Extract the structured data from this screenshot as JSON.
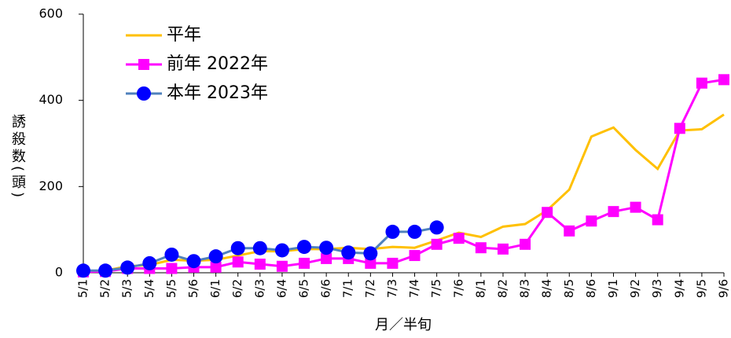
{
  "chart_data": {
    "type": "line",
    "y_label": "誘殺数(頭)",
    "x_label": "月／半旬",
    "categories": [
      "5/1",
      "5/2",
      "5/3",
      "5/4",
      "5/5",
      "5/6",
      "6/1",
      "6/2",
      "6/3",
      "6/4",
      "6/5",
      "6/6",
      "7/1",
      "7/2",
      "7/3",
      "7/4",
      "7/5",
      "7/6",
      "8/1",
      "8/2",
      "8/3",
      "8/4",
      "8/5",
      "8/6",
      "9/1",
      "9/2",
      "9/3",
      "9/4",
      "9/5",
      "9/6"
    ],
    "series": [
      {
        "name": "平年",
        "color": "#ffc000",
        "marker": "none",
        "values": [
          3,
          5,
          15,
          18,
          30,
          28,
          30,
          40,
          50,
          50,
          55,
          55,
          58,
          55,
          60,
          58,
          75,
          93,
          83,
          107,
          113,
          145,
          193,
          316,
          337,
          285,
          241,
          330,
          333,
          367
        ]
      },
      {
        "name": "前年 2022年",
        "color": "#ff00ff",
        "marker": "square",
        "values": [
          2,
          3,
          10,
          10,
          10,
          13,
          13,
          25,
          20,
          15,
          22,
          33,
          33,
          22,
          22,
          40,
          66,
          80,
          58,
          55,
          66,
          140,
          97,
          120,
          142,
          152,
          123,
          335,
          440,
          448
        ]
      },
      {
        "name": "本年 2023年",
        "color": "#4f81bd",
        "marker_color": "#0000ff",
        "marker": "circle",
        "values": [
          5,
          5,
          12,
          22,
          42,
          27,
          38,
          57,
          57,
          52,
          60,
          58,
          47,
          45,
          95,
          95,
          105,
          null,
          null,
          null,
          null,
          null,
          null,
          null,
          null,
          null,
          null,
          null,
          null,
          null
        ]
      }
    ],
    "ylim": [
      0,
      600
    ],
    "yticks": [
      0,
      200,
      400,
      600
    ],
    "legend": "upper-left",
    "grid": false
  }
}
